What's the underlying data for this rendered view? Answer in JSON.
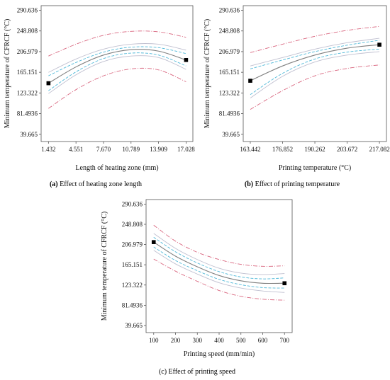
{
  "figure": {
    "colors": {
      "fit": "#7f7f7f",
      "ci": "#4fb8d8",
      "pi": "#c0c0d0",
      "outer": "#d9667f",
      "point": "#000000"
    }
  },
  "chart_data": [
    {
      "type": "line",
      "id": "a",
      "caption_letter": "(a)",
      "caption_text": " Effect of heating zone length",
      "xlabel": "Length of heating zone (mm)",
      "ylabel": "Minimum temperature of CFRCF (°C)",
      "x_ticks": [
        "1.432",
        "4.551",
        "7.670",
        "10.789",
        "13.909",
        "17.028"
      ],
      "y_ticks": [
        "39.665",
        "81.4936",
        "123.322",
        "165.151",
        "206.979",
        "248.808",
        "290.636"
      ],
      "xlim": [
        0.6,
        17.8
      ],
      "ylim": [
        25,
        300
      ],
      "grid": false,
      "series": [
        {
          "role": "fit",
          "style": "solid",
          "x": [
            1.432,
            4.551,
            7.67,
            10.789,
            13.909,
            17.028
          ],
          "values": [
            143,
            176,
            200,
            211,
            208,
            190
          ]
        },
        {
          "role": "ci-upper",
          "style": "dashed",
          "x": [
            1.432,
            4.551,
            7.67,
            10.789,
            13.909,
            17.028
          ],
          "values": [
            158,
            185,
            206,
            216,
            215,
            203
          ]
        },
        {
          "role": "ci-lower",
          "style": "dashed",
          "x": [
            1.432,
            4.551,
            7.67,
            10.789,
            13.909,
            17.028
          ],
          "values": [
            128,
            166,
            193,
            204,
            200,
            178
          ]
        },
        {
          "role": "pi-upper",
          "style": "dotted",
          "x": [
            1.432,
            4.551,
            7.67,
            10.789,
            13.909,
            17.028
          ],
          "values": [
            165,
            192,
            212,
            222,
            222,
            210
          ]
        },
        {
          "role": "pi-lower",
          "style": "dotted",
          "x": [
            1.432,
            4.551,
            7.67,
            10.789,
            13.909,
            17.028
          ],
          "values": [
            122,
            160,
            187,
            198,
            195,
            171
          ]
        },
        {
          "role": "outer-upper",
          "style": "dashdot",
          "x": [
            1.432,
            4.551,
            7.67,
            10.789,
            13.909,
            17.028
          ],
          "values": [
            198,
            222,
            240,
            248,
            247,
            236
          ]
        },
        {
          "role": "outer-lower",
          "style": "dashdot",
          "x": [
            1.432,
            4.551,
            7.67,
            10.789,
            13.909,
            17.028
          ],
          "values": [
            92,
            130,
            158,
            172,
            170,
            146
          ]
        }
      ],
      "points": [
        {
          "x": 1.432,
          "y": 143
        },
        {
          "x": 17.028,
          "y": 190
        }
      ]
    },
    {
      "type": "line",
      "id": "b",
      "caption_letter": "(b)",
      "caption_text": " Effect of printing temperature",
      "xlabel": "Printing temperature (°C)",
      "ylabel": "Minimum temperature of CFRCF (°C)",
      "x_ticks": [
        "163.442",
        "176.852",
        "190.262",
        "203.672",
        "217.082"
      ],
      "y_ticks": [
        "39.665",
        "81.4936",
        "123.322",
        "165.151",
        "206.979",
        "248.808",
        "290.636"
      ],
      "xlim": [
        160.5,
        220
      ],
      "ylim": [
        25,
        300
      ],
      "grid": false,
      "series": [
        {
          "role": "fit",
          "style": "solid",
          "x": [
            163.442,
            176.852,
            190.262,
            203.672,
            217.082
          ],
          "values": [
            148,
            178,
            200,
            214,
            221
          ]
        },
        {
          "role": "ci-upper",
          "style": "dashed",
          "x": [
            163.442,
            176.852,
            190.262,
            203.672,
            217.082
          ],
          "values": [
            172,
            190,
            207,
            220,
            230
          ]
        },
        {
          "role": "ci-lower",
          "style": "dashed",
          "x": [
            163.442,
            176.852,
            190.262,
            203.672,
            217.082
          ],
          "values": [
            120,
            163,
            192,
            206,
            212
          ]
        },
        {
          "role": "pi-upper",
          "style": "dotted",
          "x": [
            163.442,
            176.852,
            190.262,
            203.672,
            217.082
          ],
          "values": [
            178,
            195,
            212,
            225,
            234
          ]
        },
        {
          "role": "pi-lower",
          "style": "dotted",
          "x": [
            163.442,
            176.852,
            190.262,
            203.672,
            217.082
          ],
          "values": [
            113,
            157,
            186,
            200,
            207
          ]
        },
        {
          "role": "outer-upper",
          "style": "dashdot",
          "x": [
            163.442,
            176.852,
            190.262,
            203.672,
            217.082
          ],
          "values": [
            205,
            222,
            238,
            250,
            258
          ]
        },
        {
          "role": "outer-lower",
          "style": "dashdot",
          "x": [
            163.442,
            176.852,
            190.262,
            203.672,
            217.082
          ],
          "values": [
            90,
            128,
            158,
            173,
            180
          ]
        }
      ],
      "points": [
        {
          "x": 163.442,
          "y": 148
        },
        {
          "x": 217.082,
          "y": 221
        }
      ]
    },
    {
      "type": "line",
      "id": "c",
      "caption_letter": "",
      "caption_text": "(c) Effect of printing speed",
      "xlabel": "Printing speed (mm/min)",
      "ylabel": "Minimum temperature of CFRCF (°C)",
      "x_ticks": [
        "100",
        "200",
        "300",
        "400",
        "500",
        "600",
        "700"
      ],
      "y_ticks": [
        "39.665",
        "81.4936",
        "123.322",
        "165.151",
        "206.979",
        "248.808",
        "290.636"
      ],
      "xlim": [
        65,
        735
      ],
      "ylim": [
        25,
        300
      ],
      "grid": false,
      "series": [
        {
          "role": "fit",
          "style": "solid",
          "x": [
            100,
            200,
            300,
            400,
            500,
            600,
            700
          ],
          "values": [
            212,
            183,
            161,
            143,
            132,
            127,
            127
          ]
        },
        {
          "role": "ci-upper",
          "style": "dashed",
          "x": [
            100,
            200,
            300,
            400,
            500,
            600,
            700
          ],
          "values": [
            222,
            192,
            169,
            151,
            140,
            136,
            138
          ]
        },
        {
          "role": "ci-lower",
          "style": "dashed",
          "x": [
            100,
            200,
            300,
            400,
            500,
            600,
            700
          ],
          "values": [
            202,
            174,
            153,
            135,
            124,
            118,
            117
          ]
        },
        {
          "role": "pi-upper",
          "style": "dotted",
          "x": [
            100,
            200,
            300,
            400,
            500,
            600,
            700
          ],
          "values": [
            230,
            199,
            176,
            158,
            148,
            145,
            147
          ]
        },
        {
          "role": "pi-lower",
          "style": "dotted",
          "x": [
            100,
            200,
            300,
            400,
            500,
            600,
            700
          ],
          "values": [
            195,
            167,
            146,
            128,
            117,
            111,
            108
          ]
        },
        {
          "role": "outer-upper",
          "style": "dashdot",
          "x": [
            100,
            200,
            300,
            400,
            500,
            600,
            700
          ],
          "values": [
            247,
            214,
            191,
            176,
            166,
            162,
            163
          ]
        },
        {
          "role": "outer-lower",
          "style": "dashdot",
          "x": [
            100,
            200,
            300,
            400,
            500,
            600,
            700
          ],
          "values": [
            177,
            152,
            131,
            112,
            100,
            94,
            92
          ]
        }
      ],
      "points": [
        {
          "x": 100,
          "y": 212
        },
        {
          "x": 700,
          "y": 127
        }
      ]
    }
  ]
}
